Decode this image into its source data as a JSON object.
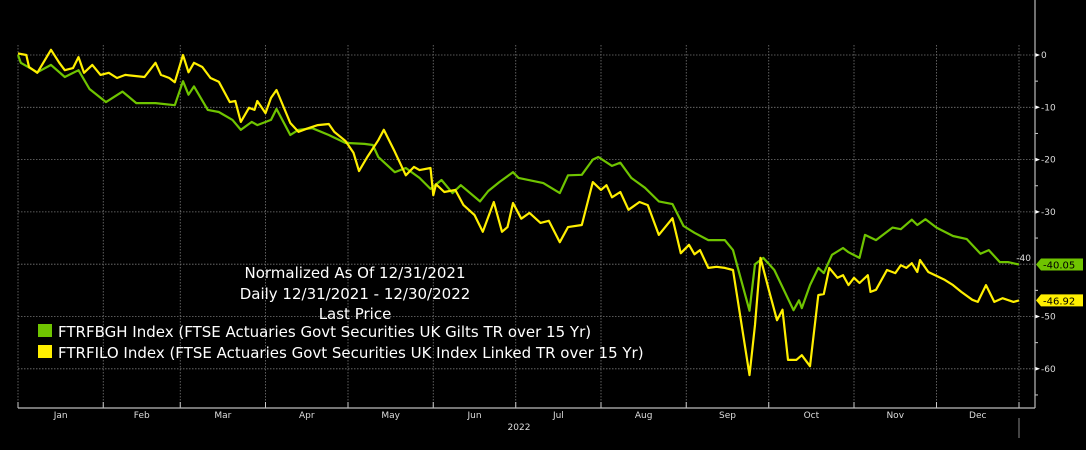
{
  "chart_data": {
    "type": "line",
    "title": "Normalized As Of 12/31/2021",
    "subtitle": "Daily 12/31/2021 - 12/30/2022",
    "field": "Last Price",
    "xlabel": "2022",
    "ylabel": "",
    "x_unit": "day of year 2022",
    "xlim": [
      0,
      364
    ],
    "ylim": [
      -65,
      3
    ],
    "y_ticks": [
      0,
      -10,
      -20,
      -30,
      -40,
      -50,
      -60
    ],
    "x_ticks": [
      "Jan",
      "Feb",
      "Mar",
      "Apr",
      "May",
      "Jun",
      "Jul",
      "Aug",
      "Sep",
      "Oct",
      "Nov",
      "Dec"
    ],
    "grid": true,
    "legend_position": "center-left",
    "series": [
      {
        "name": "FTRFBGH Index (FTSE Actuaries Govt Securities UK Gilts TR over 15 Yr)",
        "color": "#6fc400",
        "last_value": "-40.05",
        "points": [
          [
            0,
            0
          ],
          [
            1,
            -1.5
          ],
          [
            7,
            -3.3
          ],
          [
            12,
            -1.9
          ],
          [
            17,
            -4.2
          ],
          [
            22,
            -2.9
          ],
          [
            26,
            -6.5
          ],
          [
            32,
            -9
          ],
          [
            38,
            -7
          ],
          [
            43,
            -9.2
          ],
          [
            50,
            -9.2
          ],
          [
            57,
            -9.6
          ],
          [
            60,
            -5
          ],
          [
            62,
            -7.6
          ],
          [
            64,
            -6
          ],
          [
            69,
            -10.5
          ],
          [
            73,
            -10.9
          ],
          [
            78,
            -12.4
          ],
          [
            81,
            -14.3
          ],
          [
            85,
            -12.8
          ],
          [
            87,
            -13.4
          ],
          [
            92,
            -12.4
          ],
          [
            94,
            -10.3
          ],
          [
            99,
            -15.3
          ],
          [
            102,
            -14.3
          ],
          [
            107,
            -14
          ],
          [
            113,
            -15.3
          ],
          [
            119,
            -16.8
          ],
          [
            126,
            -17
          ],
          [
            129,
            -17.2
          ],
          [
            131,
            -19.5
          ],
          [
            137,
            -22.4
          ],
          [
            141,
            -21.6
          ],
          [
            146,
            -23.5
          ],
          [
            150,
            -25.6
          ],
          [
            154,
            -23.9
          ],
          [
            158,
            -26.4
          ],
          [
            161,
            -24.9
          ],
          [
            168,
            -28
          ],
          [
            171,
            -26
          ],
          [
            175,
            -24.3
          ],
          [
            180,
            -22.4
          ],
          [
            182,
            -23.5
          ],
          [
            191,
            -24.5
          ],
          [
            197,
            -26.4
          ],
          [
            200,
            -23
          ],
          [
            205,
            -22.9
          ],
          [
            209,
            -20
          ],
          [
            211,
            -19.5
          ],
          [
            216,
            -21.2
          ],
          [
            219,
            -20.6
          ],
          [
            223,
            -23.5
          ],
          [
            228,
            -25.4
          ],
          [
            233,
            -28
          ],
          [
            238,
            -28.5
          ],
          [
            242,
            -32.7
          ],
          [
            246,
            -34
          ],
          [
            251,
            -35.4
          ],
          [
            257,
            -35.4
          ],
          [
            260,
            -37.3
          ],
          [
            266,
            -48.9
          ],
          [
            268,
            -40
          ],
          [
            271,
            -38.8
          ],
          [
            275,
            -41.1
          ],
          [
            279,
            -45.5
          ],
          [
            282,
            -48.8
          ],
          [
            284,
            -46.9
          ],
          [
            285,
            -48.4
          ],
          [
            288,
            -44
          ],
          [
            291,
            -40.7
          ],
          [
            293,
            -41.7
          ],
          [
            296,
            -38.2
          ],
          [
            300,
            -36.9
          ],
          [
            302,
            -37.7
          ],
          [
            306,
            -38.8
          ],
          [
            308,
            -34.4
          ],
          [
            312,
            -35.4
          ],
          [
            318,
            -33
          ],
          [
            321,
            -33.3
          ],
          [
            325,
            -31.5
          ],
          [
            327,
            -32.5
          ],
          [
            330,
            -31.4
          ],
          [
            334,
            -33
          ],
          [
            340,
            -34.6
          ],
          [
            345,
            -35.2
          ],
          [
            350,
            -38
          ],
          [
            353,
            -37.3
          ],
          [
            357,
            -39.6
          ],
          [
            360,
            -39.6
          ],
          [
            364,
            -40.05
          ]
        ]
      },
      {
        "name": "FTRFILO Index (FTSE Actuaries Govt Securities UK Index Linked TR over 15 Yr)",
        "color": "#ffef00",
        "last_value": "-46.92",
        "points": [
          [
            0,
            0.3
          ],
          [
            3,
            0
          ],
          [
            4,
            -2.3
          ],
          [
            7,
            -3.4
          ],
          [
            12,
            1
          ],
          [
            15,
            -1.5
          ],
          [
            17,
            -2.9
          ],
          [
            20,
            -2.5
          ],
          [
            22,
            -0.4
          ],
          [
            24,
            -3.4
          ],
          [
            27,
            -1.9
          ],
          [
            30,
            -3.8
          ],
          [
            33,
            -3.4
          ],
          [
            36,
            -4.4
          ],
          [
            39,
            -3.8
          ],
          [
            46,
            -4.2
          ],
          [
            50,
            -1.5
          ],
          [
            52,
            -3.8
          ],
          [
            55,
            -4.4
          ],
          [
            57,
            -5.2
          ],
          [
            60,
            0
          ],
          [
            62,
            -3.3
          ],
          [
            64,
            -1.5
          ],
          [
            67,
            -2.3
          ],
          [
            70,
            -4.4
          ],
          [
            73,
            -5.1
          ],
          [
            77,
            -9
          ],
          [
            79,
            -8.8
          ],
          [
            81,
            -12.8
          ],
          [
            84,
            -10.1
          ],
          [
            86,
            -10.5
          ],
          [
            87,
            -8.8
          ],
          [
            90,
            -11.1
          ],
          [
            92,
            -8.2
          ],
          [
            94,
            -6.7
          ],
          [
            99,
            -13
          ],
          [
            102,
            -14.7
          ],
          [
            105,
            -14.1
          ],
          [
            109,
            -13.4
          ],
          [
            113,
            -13.2
          ],
          [
            115,
            -14.7
          ],
          [
            119,
            -16.4
          ],
          [
            122,
            -18.7
          ],
          [
            124,
            -22.2
          ],
          [
            127,
            -19.5
          ],
          [
            131,
            -16.3
          ],
          [
            133,
            -14.3
          ],
          [
            137,
            -18.5
          ],
          [
            141,
            -23
          ],
          [
            144,
            -21.4
          ],
          [
            146,
            -22
          ],
          [
            150,
            -21.6
          ],
          [
            151,
            -26.8
          ],
          [
            152,
            -24.7
          ],
          [
            155,
            -26.2
          ],
          [
            159,
            -25.8
          ],
          [
            162,
            -28.7
          ],
          [
            166,
            -30.6
          ],
          [
            169,
            -33.8
          ],
          [
            173,
            -28.1
          ],
          [
            176,
            -33.8
          ],
          [
            178,
            -32.9
          ],
          [
            180,
            -28.3
          ],
          [
            183,
            -31.3
          ],
          [
            186,
            -30.2
          ],
          [
            190,
            -32.1
          ],
          [
            193,
            -31.7
          ],
          [
            197,
            -35.8
          ],
          [
            200,
            -32.9
          ],
          [
            205,
            -32.5
          ],
          [
            209,
            -24.3
          ],
          [
            212,
            -25.8
          ],
          [
            214,
            -24.9
          ],
          [
            216,
            -27.2
          ],
          [
            219,
            -26.2
          ],
          [
            222,
            -29.6
          ],
          [
            226,
            -28.1
          ],
          [
            229,
            -28.7
          ],
          [
            233,
            -34.4
          ],
          [
            238,
            -31.2
          ],
          [
            241,
            -37.9
          ],
          [
            244,
            -36.3
          ],
          [
            246,
            -38.1
          ],
          [
            248,
            -37.3
          ],
          [
            251,
            -40.7
          ],
          [
            254,
            -40.5
          ],
          [
            257,
            -40.7
          ],
          [
            260,
            -41.1
          ],
          [
            266,
            -61.2
          ],
          [
            268,
            -51.6
          ],
          [
            270,
            -38.8
          ],
          [
            273,
            -44.9
          ],
          [
            276,
            -50.7
          ],
          [
            278,
            -48.7
          ],
          [
            280,
            -58.3
          ],
          [
            283,
            -58.3
          ],
          [
            285,
            -57.4
          ],
          [
            288,
            -59.5
          ],
          [
            291,
            -45.9
          ],
          [
            293,
            -45.7
          ],
          [
            295,
            -40.7
          ],
          [
            298,
            -42.6
          ],
          [
            300,
            -42.1
          ],
          [
            302,
            -44
          ],
          [
            304,
            -42.6
          ],
          [
            306,
            -43.6
          ],
          [
            309,
            -42.1
          ],
          [
            310,
            -45.3
          ],
          [
            312,
            -44.9
          ],
          [
            316,
            -41.1
          ],
          [
            319,
            -41.7
          ],
          [
            321,
            -40.2
          ],
          [
            323,
            -40.7
          ],
          [
            325,
            -39.8
          ],
          [
            327,
            -41.5
          ],
          [
            328,
            -39.2
          ],
          [
            331,
            -41.5
          ],
          [
            337,
            -43
          ],
          [
            340,
            -44
          ],
          [
            343,
            -45.3
          ],
          [
            347,
            -46.8
          ],
          [
            349,
            -47.2
          ],
          [
            352,
            -44
          ],
          [
            355,
            -47.2
          ],
          [
            358,
            -46.5
          ],
          [
            362,
            -47.2
          ],
          [
            364,
            -46.92
          ]
        ]
      }
    ]
  }
}
